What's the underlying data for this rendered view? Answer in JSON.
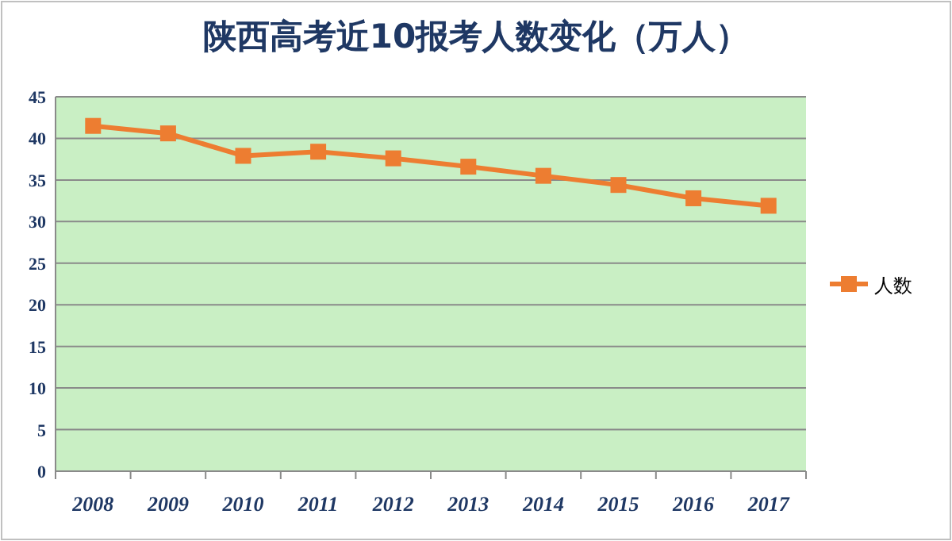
{
  "chart_data": {
    "type": "line",
    "title": "陕西高考近10报考人数变化（万人）",
    "categories": [
      "2008",
      "2009",
      "2010",
      "2011",
      "2012",
      "2013",
      "2014",
      "2015",
      "2016",
      "2017"
    ],
    "series": [
      {
        "name": "人数",
        "color": "#ed7d31",
        "values": [
          41.5,
          40.6,
          37.9,
          38.4,
          37.6,
          36.6,
          35.5,
          34.4,
          32.8,
          31.9
        ]
      }
    ],
    "ylim": [
      0,
      45
    ],
    "yticks": [
      0,
      5,
      10,
      15,
      20,
      25,
      30,
      35,
      40,
      45
    ],
    "grid": "y",
    "legend": "right",
    "marker": "square",
    "line_style": "solid"
  }
}
